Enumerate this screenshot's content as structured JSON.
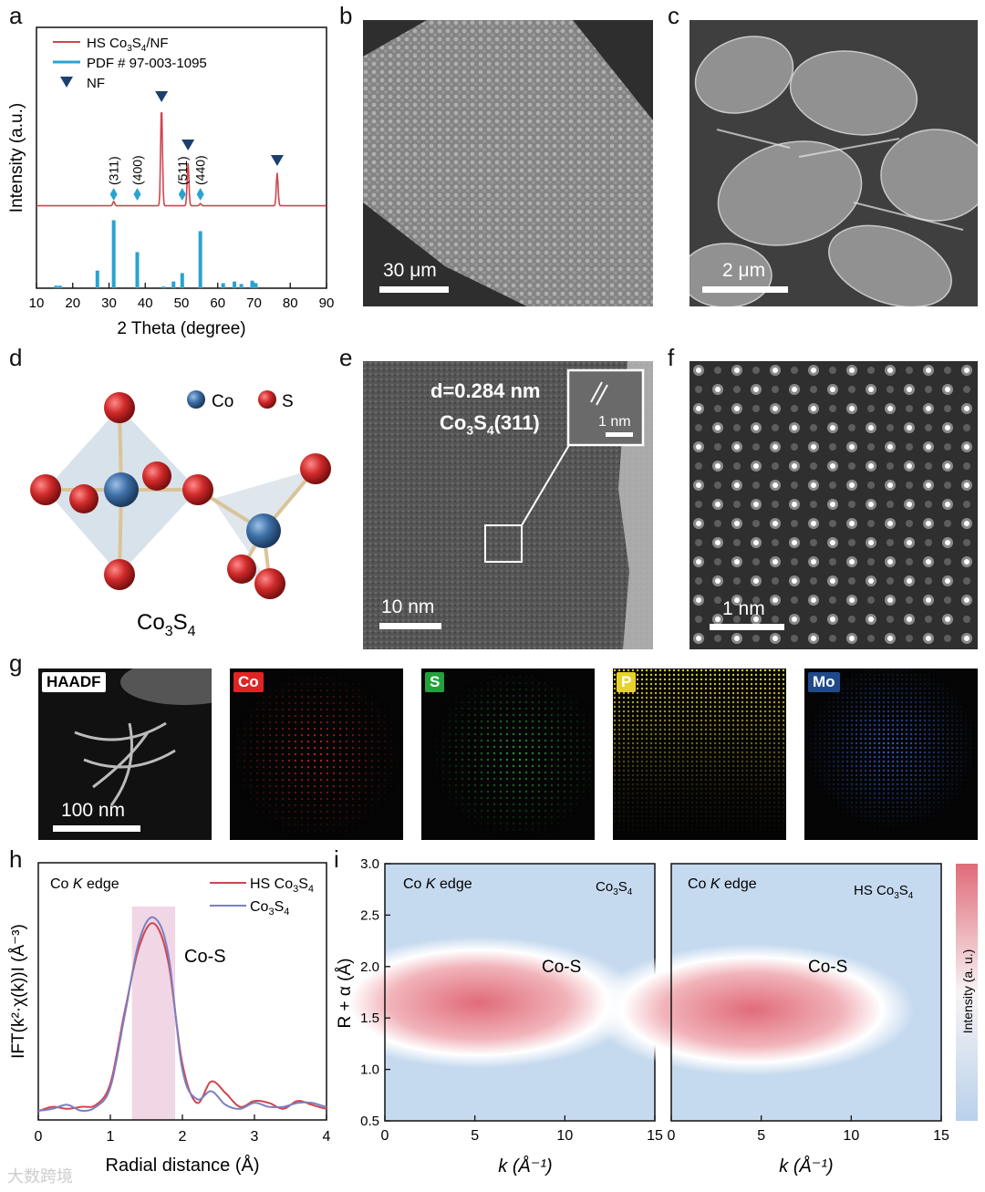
{
  "panels": {
    "a": "a",
    "b": "b",
    "c": "c",
    "d": "d",
    "e": "e",
    "f": "f",
    "g": "g",
    "h": "h",
    "i": "i"
  },
  "chart_data": [
    {
      "type": "line",
      "panel": "a",
      "title": "",
      "xlabel": "2 Theta (degree)",
      "ylabel": "Intensity (a.u.)",
      "xlim": [
        10,
        90
      ],
      "x_ticks": [
        10,
        20,
        30,
        40,
        50,
        60,
        70,
        80,
        90
      ],
      "legend": [
        {
          "label_main": "HS Co",
          "sub1": "3",
          "mid": "S",
          "sub2": "4",
          "label_tail": "/NF",
          "color": "#d0454f"
        },
        {
          "label": "PDF # 97-003-1095",
          "color": "#29a3d1"
        },
        {
          "label": "NF",
          "color": "#1c3f6e"
        }
      ],
      "series": [
        {
          "name": "HS Co3S4/NF",
          "x": [
            10,
            30,
            31.3,
            33,
            37.8,
            40,
            44.5,
            46,
            50,
            51.8,
            53,
            55.2,
            60,
            70,
            76.4,
            80,
            90
          ],
          "y": [
            0.02,
            0.03,
            0.07,
            0.03,
            0.04,
            0.03,
            0.95,
            0.03,
            0.03,
            0.42,
            0.03,
            0.05,
            0.03,
            0.03,
            0.33,
            0.03,
            0.02
          ]
        },
        {
          "name": "PDF # 97-003-1095",
          "x": [
            15.4,
            16.5,
            26.8,
            31.3,
            37.8,
            45,
            47.8,
            50.2,
            55.2,
            61.5,
            64.6,
            66.5,
            69.5,
            70.5
          ],
          "y": [
            0.03,
            0.03,
            0.21,
            0.81,
            0.43,
            0.02,
            0.08,
            0.18,
            0.68,
            0.06,
            0.08,
            0.05,
            0.09,
            0.06
          ]
        }
      ],
      "peak_labels": [
        "(311)",
        "(400)",
        "(511)",
        "(440)"
      ],
      "peak_positions": [
        31.3,
        37.8,
        50.2,
        55.2
      ],
      "nf_positions": [
        44.5,
        51.8,
        76.4
      ]
    },
    {
      "type": "line",
      "panel": "h",
      "annotation_edge": "Co ",
      "annotation_edge_k": "K",
      "annotation_edge_tail": " edge",
      "xlabel": "Radial distance (Å)",
      "ylabel": "IFT(k²·χ(k))I (Å⁻³)",
      "xlim": [
        0,
        4
      ],
      "x_ticks": [
        0,
        1,
        2,
        3,
        4
      ],
      "peak_label": "Co-S",
      "highlight_range": [
        1.3,
        1.9
      ],
      "legend": [
        {
          "label_main": "HS Co",
          "sub1": "3",
          "mid": "S",
          "sub2": "4",
          "color": "#d0454f"
        },
        {
          "label_main": "Co",
          "sub1": "3",
          "mid": "S",
          "sub2": "4",
          "color": "#7b7fc2"
        }
      ],
      "series": [
        {
          "name": "HS Co3S4",
          "x": [
            0,
            0.2,
            0.4,
            0.6,
            0.8,
            1.0,
            1.2,
            1.4,
            1.6,
            1.8,
            2.0,
            2.2,
            2.4,
            2.6,
            2.8,
            3.0,
            3.2,
            3.4,
            3.6,
            3.8,
            4.0
          ],
          "y": [
            0.01,
            0.03,
            0.02,
            0.03,
            0.04,
            0.15,
            0.52,
            0.85,
            0.97,
            0.78,
            0.25,
            0.05,
            0.16,
            0.1,
            0.03,
            0.06,
            0.05,
            0.02,
            0.06,
            0.04,
            0.02
          ]
        },
        {
          "name": "Co3S4",
          "x": [
            0,
            0.2,
            0.4,
            0.6,
            0.8,
            1.0,
            1.2,
            1.4,
            1.6,
            1.8,
            2.0,
            2.2,
            2.4,
            2.6,
            2.8,
            3.0,
            3.2,
            3.4,
            3.6,
            3.8,
            4.0
          ],
          "y": [
            0.01,
            0.02,
            0.04,
            0.01,
            0.03,
            0.13,
            0.5,
            0.88,
            1.0,
            0.82,
            0.22,
            0.07,
            0.11,
            0.04,
            0.02,
            0.05,
            0.03,
            0.03,
            0.05,
            0.05,
            0.03
          ]
        }
      ]
    },
    {
      "type": "heatmap",
      "panel": "i",
      "xlabel": "k (Å⁻¹)",
      "ylabel": "R + α (Å)",
      "xlim": [
        0,
        15
      ],
      "ylim": [
        0.5,
        3.0
      ],
      "x_ticks": [
        0,
        5,
        10,
        15
      ],
      "y_ticks": [
        0.5,
        1.0,
        1.5,
        2.0,
        2.5,
        3.0
      ],
      "colorbar_label": "Intensity (a. u.)",
      "maps": [
        {
          "sample_main": "Co",
          "sub1": "3",
          "mid": "S",
          "sub2": "4",
          "peak_label": "Co-S",
          "center_k": 5.2,
          "center_r": 1.65,
          "edge_text": "Co ",
          "edge_k": "K",
          "edge_tail": " edge"
        },
        {
          "sample_main": "HS Co",
          "sub1": "3",
          "mid": "S",
          "sub2": "4",
          "peak_label": "Co-S",
          "center_k": 4.5,
          "center_r": 1.58,
          "edge_text": "Co ",
          "edge_k": "K",
          "edge_tail": " edge"
        }
      ]
    }
  ],
  "micrographs": {
    "b": {
      "scale": "30 μm"
    },
    "c": {
      "scale": "2 μm"
    },
    "e": {
      "scale": "10 nm",
      "d_spacing": "d=0.284 nm",
      "plane_main": "Co",
      "plane_sub1": "3",
      "plane_mid": "S",
      "plane_sub2": "4",
      "plane_tail": "(311)",
      "inset_scale": "1 nm"
    },
    "f": {
      "scale": "1 nm"
    }
  },
  "structure": {
    "legend_co": "Co",
    "legend_s": "S",
    "formula_main": "Co",
    "sub1": "3",
    "mid": "S",
    "sub2": "4",
    "co_color": "#3d6fa6",
    "s_color": "#c92a2a"
  },
  "eds": [
    {
      "label": "HAADF",
      "color": "#ffffff",
      "text_color": "#000000",
      "scale": "100 nm"
    },
    {
      "label": "Co",
      "color": "#e02424",
      "text_color": "#ffffff"
    },
    {
      "label": "S",
      "color": "#23a23a",
      "text_color": "#ffffff"
    },
    {
      "label": "P",
      "color": "#e6d22a",
      "text_color": "#ffffff"
    },
    {
      "label": "Mo",
      "color": "#2f5fd0",
      "text_color": "#ffffff"
    }
  ],
  "watermark": "大数跨境"
}
